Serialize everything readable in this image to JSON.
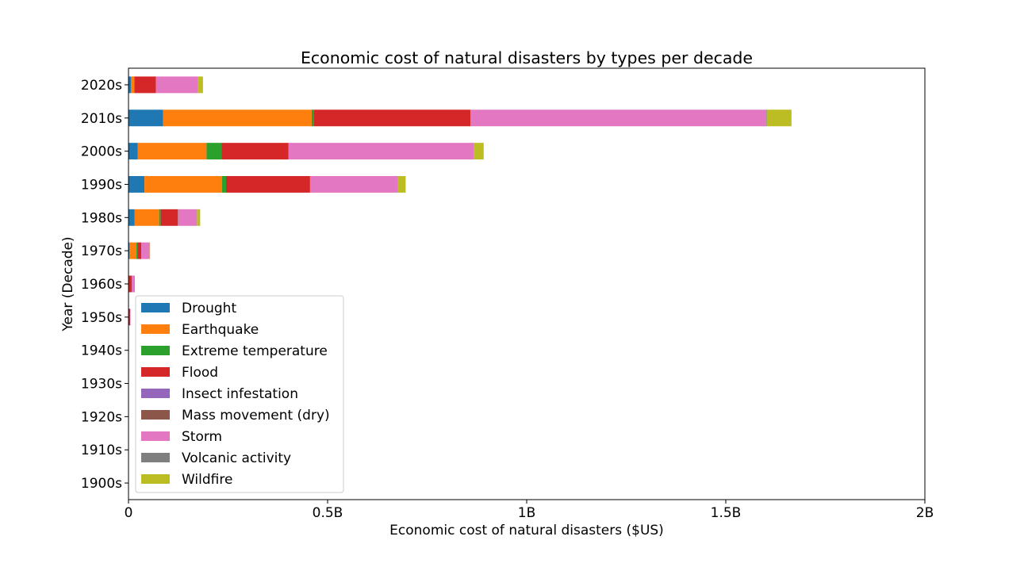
{
  "chart_data": {
    "type": "bar",
    "orientation": "horizontal",
    "stacked": true,
    "title": "Economic cost of natural disasters by types per decade",
    "xlabel": "Economic cost of natural disasters ($US)",
    "ylabel": "Year (Decade)",
    "xlim": [
      0,
      2000000000
    ],
    "xticks": [
      0,
      500000000,
      1000000000,
      1500000000,
      2000000000
    ],
    "xtick_labels": [
      "0",
      "0.5B",
      "1B",
      "1.5B",
      "2B"
    ],
    "categories": [
      "1900s",
      "1910s",
      "1920s",
      "1930s",
      "1940s",
      "1950s",
      "1960s",
      "1970s",
      "1980s",
      "1990s",
      "2000s",
      "2010s",
      "2020s"
    ],
    "grid": false,
    "legend_position": "lower-left",
    "series": [
      {
        "name": "Drought",
        "color": "#1f77b4",
        "values": [
          0,
          0,
          0,
          0,
          0,
          0,
          0,
          2000000,
          15000000,
          40000000,
          23000000,
          87000000,
          6000000
        ]
      },
      {
        "name": "Earthquake",
        "color": "#ff7f0e",
        "values": [
          0,
          0,
          0,
          0,
          0,
          0,
          1000000,
          18000000,
          62000000,
          195000000,
          173000000,
          373000000,
          9000000
        ]
      },
      {
        "name": "Extreme temperature",
        "color": "#2ca02c",
        "values": [
          0,
          0,
          0,
          0,
          0,
          0,
          0,
          3000000,
          4000000,
          10000000,
          38000000,
          6000000,
          0
        ]
      },
      {
        "name": "Flood",
        "color": "#d62728",
        "values": [
          0,
          0,
          0,
          1000000,
          1000000,
          4000000,
          7000000,
          9000000,
          43000000,
          211000000,
          168000000,
          393000000,
          54000000
        ]
      },
      {
        "name": "Insect infestation",
        "color": "#9467bd",
        "values": [
          0,
          0,
          0,
          0,
          0,
          0,
          0,
          0,
          0,
          0,
          0,
          0,
          0
        ]
      },
      {
        "name": "Mass movement (dry)",
        "color": "#8c564b",
        "values": [
          0,
          0,
          0,
          0,
          0,
          0,
          0,
          0,
          1000000,
          0,
          0,
          0,
          0
        ]
      },
      {
        "name": "Storm",
        "color": "#e377c2",
        "values": [
          0,
          0,
          0,
          0,
          0,
          1000000,
          8000000,
          21000000,
          47000000,
          220000000,
          466000000,
          742000000,
          106000000
        ]
      },
      {
        "name": "Volcanic activity",
        "color": "#7f7f7f",
        "values": [
          0,
          0,
          0,
          0,
          0,
          0,
          0,
          0,
          0,
          1000000,
          0,
          2000000,
          0
        ]
      },
      {
        "name": "Wildfire",
        "color": "#bcbd22",
        "values": [
          0,
          0,
          0,
          0,
          0,
          0,
          0,
          1000000,
          8000000,
          19000000,
          24000000,
          62000000,
          12000000
        ]
      }
    ]
  }
}
